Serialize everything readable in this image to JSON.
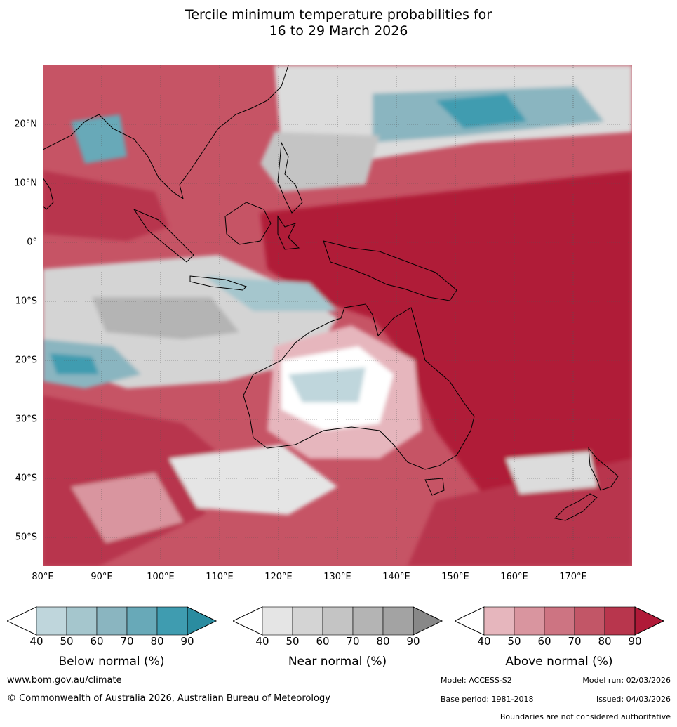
{
  "title_line1": "Tercile minimum temperature probabilities for",
  "title_line2": "16 to 29 March 2026",
  "lat_labels": [
    "20°N",
    "10°N",
    "0°",
    "10°S",
    "20°S",
    "30°S",
    "40°S",
    "50°S"
  ],
  "lon_labels": [
    "80°E",
    "90°E",
    "100°E",
    "110°E",
    "120°E",
    "130°E",
    "140°E",
    "150°E",
    "160°E",
    "170°E"
  ],
  "colors": {
    "below": [
      "#bfd6dc",
      "#a5c6cd",
      "#8ab5c0",
      "#68a9b8",
      "#3f9cb0",
      "#2a8ca0"
    ],
    "near": [
      "#e5e5e5",
      "#d4d4d4",
      "#c4c4c4",
      "#b4b4b4",
      "#a3a3a3",
      "#888888"
    ],
    "above": [
      "#e6b6bd",
      "#d9959f",
      "#cd7482",
      "#c25667",
      "#b8364d",
      "#b01a38"
    ]
  },
  "colorbars": [
    {
      "title": "Below normal (%)",
      "ticks": [
        "40",
        "50",
        "60",
        "70",
        "80",
        "90"
      ]
    },
    {
      "title": "Near normal (%)",
      "ticks": [
        "40",
        "50",
        "60",
        "70",
        "80",
        "90"
      ]
    },
    {
      "title": "Above normal (%)",
      "ticks": [
        "40",
        "50",
        "60",
        "70",
        "80",
        "90"
      ]
    }
  ],
  "footer": {
    "website": "www.bom.gov.au/climate",
    "copyright": "© Commonwealth of Australia 2026, Australian Bureau of Meteorology",
    "model": "Model: ACCESS-S2",
    "model_run": "Model run: 02/03/2026",
    "base_period": "Base period: 1981-2018",
    "issued": "Issued: 04/03/2026",
    "disclaimer": "Boundaries are not considered authoritative"
  }
}
